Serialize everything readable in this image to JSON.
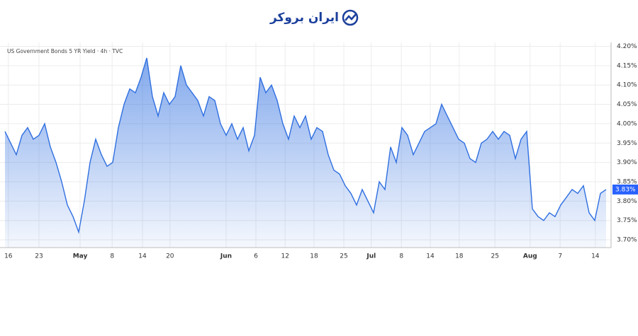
{
  "header": {
    "logo": "ایران بروکر"
  },
  "chart_data": {
    "type": "area",
    "title": "US Government Bonds 5 YR Yield · 4h · TVC",
    "color": "#2f6fe0",
    "values": [
      3.98,
      3.95,
      3.92,
      3.97,
      3.99,
      3.96,
      3.97,
      4.0,
      3.94,
      3.9,
      3.85,
      3.79,
      3.76,
      3.72,
      3.8,
      3.9,
      3.96,
      3.92,
      3.89,
      3.9,
      3.99,
      4.05,
      4.09,
      4.08,
      4.12,
      4.17,
      4.07,
      4.02,
      4.08,
      4.05,
      4.07,
      4.15,
      4.1,
      4.08,
      4.06,
      4.02,
      4.07,
      4.06,
      4.0,
      3.97,
      4.0,
      3.96,
      3.99,
      3.93,
      3.97,
      4.12,
      4.08,
      4.1,
      4.06,
      4.0,
      3.96,
      4.02,
      3.99,
      4.02,
      3.96,
      3.99,
      3.98,
      3.92,
      3.88,
      3.87,
      3.84,
      3.82,
      3.79,
      3.83,
      3.8,
      3.77,
      3.85,
      3.83,
      3.94,
      3.9,
      3.99,
      3.97,
      3.92,
      3.95,
      3.98,
      3.99,
      4.0,
      4.05,
      4.02,
      3.99,
      3.96,
      3.95,
      3.91,
      3.9,
      3.95,
      3.96,
      3.98,
      3.96,
      3.98,
      3.97,
      3.91,
      3.96,
      3.98,
      3.78,
      3.76,
      3.75,
      3.77,
      3.76,
      3.79,
      3.81,
      3.83,
      3.82,
      3.84,
      3.77,
      3.75,
      3.82,
      3.83
    ],
    "last_label": {
      "value": 3.83,
      "label": "3.83%"
    },
    "xlim": [
      -0.875,
      106.875
    ],
    "xticks": [
      {
        "value": 0.6,
        "label": "16"
      },
      {
        "value": 6,
        "label": "23"
      },
      {
        "value": 13.25,
        "label": "May"
      },
      {
        "value": 18.9,
        "label": "8"
      },
      {
        "value": 24.25,
        "label": "14"
      },
      {
        "value": 29.1,
        "label": "20"
      },
      {
        "value": 39,
        "label": "Jun"
      },
      {
        "value": 44.25,
        "label": "6"
      },
      {
        "value": 49.4,
        "label": "12"
      },
      {
        "value": 54.5,
        "label": "18"
      },
      {
        "value": 59.75,
        "label": "25"
      },
      {
        "value": 64.6,
        "label": "Jul"
      },
      {
        "value": 69.9,
        "label": "8"
      },
      {
        "value": 75,
        "label": "14"
      },
      {
        "value": 80.1,
        "label": "18"
      },
      {
        "value": 86.4,
        "label": "25"
      },
      {
        "value": 92.6,
        "label": "Aug"
      },
      {
        "value": 97.9,
        "label": "7"
      },
      {
        "value": 104.1,
        "label": "14"
      }
    ],
    "ylim": [
      3.68,
      4.21
    ],
    "yticks": [
      {
        "value": 3.7,
        "label": "3.70%"
      },
      {
        "value": 3.75,
        "label": "3.75%"
      },
      {
        "value": 3.8,
        "label": "3.80%"
      },
      {
        "value": 3.85,
        "label": "3.85%"
      },
      {
        "value": 3.9,
        "label": "3.90%"
      },
      {
        "value": 3.95,
        "label": "3.95%"
      },
      {
        "value": 4.0,
        "label": "4.00%"
      },
      {
        "value": 4.05,
        "label": "4.05%"
      },
      {
        "value": 4.1,
        "label": "4.10%"
      },
      {
        "value": 4.15,
        "label": "4.15%"
      },
      {
        "value": 4.2,
        "label": "4.20%"
      }
    ],
    "grid": true
  }
}
